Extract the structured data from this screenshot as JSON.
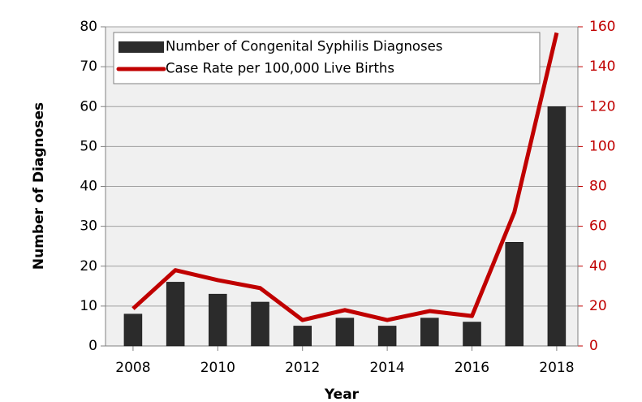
{
  "chart_data": {
    "type": "bar",
    "x": [
      2008,
      2009,
      2010,
      2011,
      2012,
      2013,
      2014,
      2015,
      2016,
      2017,
      2018
    ],
    "xlim": [
      2007.35,
      2018.5
    ],
    "xticks": [
      2008,
      2010,
      2012,
      2014,
      2016,
      2018
    ],
    "xlabel": "Year",
    "ylabel": "Number of Diagnoses",
    "ylim": [
      0,
      80
    ],
    "yticks": [
      0,
      10,
      20,
      30,
      40,
      50,
      60,
      70,
      80
    ],
    "y2lim": [
      0,
      160
    ],
    "y2ticks": [
      0,
      20,
      40,
      60,
      80,
      100,
      120,
      140,
      160
    ],
    "grid": true,
    "legend": "upper left",
    "series": [
      {
        "name": "Number of Congenital Syphilis Diagnoses",
        "type": "bar",
        "color": "#2b2b2b",
        "values": [
          8,
          16,
          13,
          11,
          5,
          7,
          5,
          7,
          6,
          26,
          60
        ]
      },
      {
        "name": "Case Rate per 100,000 Live Births",
        "type": "line",
        "axis": "y2",
        "color": "#c00000",
        "values": [
          18.7,
          38,
          33,
          29,
          13,
          18,
          13,
          17.5,
          15,
          67,
          157
        ]
      }
    ]
  }
}
